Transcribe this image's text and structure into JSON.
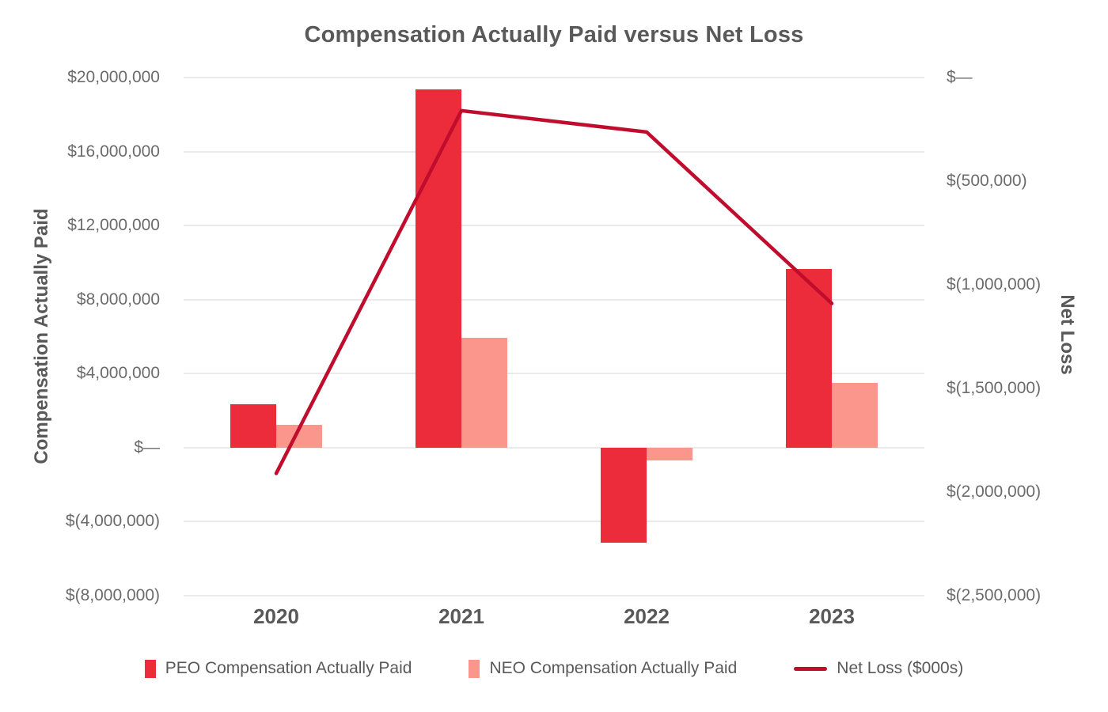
{
  "chart": {
    "title": "Compensation Actually Paid versus Net Loss"
  },
  "chart_data": {
    "type": "combo-bar-line",
    "title": "Compensation Actually Paid versus Net Loss",
    "categories": [
      "2020",
      "2021",
      "2022",
      "2023"
    ],
    "series": [
      {
        "name": "PEO Compensation Actually Paid",
        "type": "bar",
        "axis": "left",
        "color": "#ED2C3B",
        "values": [
          2350000,
          19350000,
          -5150000,
          9650000
        ]
      },
      {
        "name": "NEO Compensation Actually Paid",
        "type": "bar",
        "axis": "left",
        "color": "#FB968D",
        "values": [
          1250000,
          5950000,
          -680000,
          3500000
        ]
      },
      {
        "name": "Net Loss ($000s)",
        "type": "line",
        "axis": "right",
        "color": "#C00D2D",
        "values": [
          -1910000,
          -160000,
          -263000,
          -1090000
        ]
      }
    ],
    "left_axis": {
      "label": "Compensation Actually Paid",
      "lim": [
        -8000000,
        20000000
      ],
      "ticks": [
        {
          "label": "$20,000,000",
          "value": 20000000
        },
        {
          "label": "$16,000,000",
          "value": 16000000
        },
        {
          "label": "$12,000,000",
          "value": 12000000
        },
        {
          "label": "$8,000,000",
          "value": 8000000
        },
        {
          "label": "$4,000,000",
          "value": 4000000
        },
        {
          "label": "$—",
          "value": 0
        },
        {
          "label": "$(4,000,000)",
          "value": -4000000
        },
        {
          "label": "$(8,000,000)",
          "value": -8000000
        }
      ]
    },
    "right_axis": {
      "label": "Net Loss",
      "lim": [
        -2500000,
        0
      ],
      "ticks": [
        {
          "label": "$—",
          "value": 0
        },
        {
          "label": "$(500,000)",
          "value": -500000
        },
        {
          "label": "$(1,000,000)",
          "value": -1000000
        },
        {
          "label": "$(1,500,000)",
          "value": -1500000
        },
        {
          "label": "$(2,000,000)",
          "value": -2000000
        },
        {
          "label": "$(2,500,000)",
          "value": -2500000
        }
      ]
    },
    "grid": "horizontal",
    "legend_position": "bottom",
    "colors": {
      "grid": "#EAEAEA",
      "title_text": "#595959",
      "tick_text": "#6B6B6B"
    }
  }
}
